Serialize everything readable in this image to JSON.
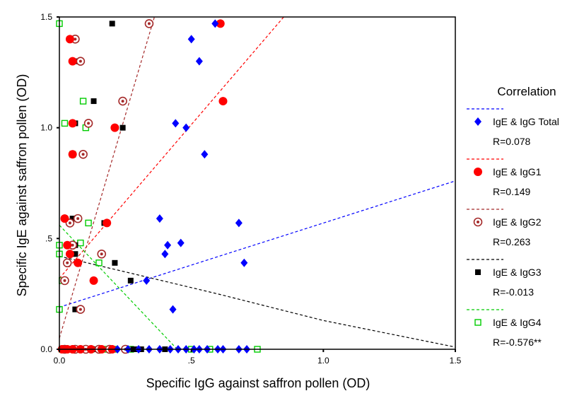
{
  "chart_data": {
    "type": "scatter",
    "xlabel": "Specific IgG against saffron pollen (OD)",
    "ylabel": "Specific IgE against saffron pollen (OD)",
    "xlim": [
      0,
      1.5
    ],
    "ylim": [
      0,
      1.5
    ],
    "x_ticks": [
      {
        "value": 0,
        "label": "0.0"
      },
      {
        "value": 0.5,
        "label": ".5"
      },
      {
        "value": 1.0,
        "label": "1.0"
      },
      {
        "value": 1.5,
        "label": "1.5"
      }
    ],
    "y_ticks": [
      {
        "value": 0,
        "label": "0.0"
      },
      {
        "value": 0.5,
        "label": ".5"
      },
      {
        "value": 1.0,
        "label": "1.0"
      },
      {
        "value": 1.5,
        "label": "1.5"
      }
    ],
    "grid": false,
    "legend_title": "Correlation",
    "legend_position": "right",
    "series": [
      {
        "name": "IgE & IgG Total",
        "r_label": "R=0.078",
        "color": "#0000ff",
        "marker": "diamond",
        "fit": [
          [
            0,
            0.19
          ],
          [
            1.5,
            0.76
          ]
        ],
        "points": [
          [
            0.33,
            0.31
          ],
          [
            0.38,
            0.59
          ],
          [
            0.4,
            0.43
          ],
          [
            0.41,
            0.47
          ],
          [
            0.43,
            0.18
          ],
          [
            0.44,
            1.02
          ],
          [
            0.46,
            0.48
          ],
          [
            0.48,
            1.0
          ],
          [
            0.5,
            1.4
          ],
          [
            0.53,
            1.3
          ],
          [
            0.55,
            0.88
          ],
          [
            0.59,
            1.47
          ],
          [
            0.68,
            0.57
          ],
          [
            0.7,
            0.39
          ],
          [
            0.22,
            0.0
          ],
          [
            0.26,
            0.0
          ],
          [
            0.3,
            0.0
          ],
          [
            0.34,
            0.0
          ],
          [
            0.38,
            0.0
          ],
          [
            0.42,
            0.0
          ],
          [
            0.45,
            0.0
          ],
          [
            0.48,
            0.0
          ],
          [
            0.51,
            0.0
          ],
          [
            0.53,
            0.0
          ],
          [
            0.56,
            0.0
          ],
          [
            0.6,
            0.0
          ],
          [
            0.62,
            0.0
          ],
          [
            0.68,
            0.0
          ],
          [
            0.71,
            0.0
          ]
        ]
      },
      {
        "name": "IgE & IgG1",
        "r_label": "R=0.149",
        "color": "#ff0000",
        "marker": "circle",
        "fit": [
          [
            0,
            0.32
          ],
          [
            0.85,
            1.5
          ]
        ],
        "points": [
          [
            0.04,
            1.4
          ],
          [
            0.05,
            1.3
          ],
          [
            0.05,
            1.02
          ],
          [
            0.05,
            0.88
          ],
          [
            0.02,
            0.59
          ],
          [
            0.03,
            0.47
          ],
          [
            0.04,
            0.43
          ],
          [
            0.07,
            0.39
          ],
          [
            0.13,
            0.31
          ],
          [
            0.18,
            0.57
          ],
          [
            0.21,
            1.0
          ],
          [
            0.61,
            1.47
          ],
          [
            0.62,
            1.12
          ],
          [
            0.01,
            0.0
          ],
          [
            0.03,
            0.0
          ],
          [
            0.05,
            0.0
          ],
          [
            0.08,
            0.0
          ],
          [
            0.12,
            0.0
          ],
          [
            0.16,
            0.0
          ],
          [
            0.2,
            0.0
          ]
        ]
      },
      {
        "name": "IgE & IgG2",
        "r_label": "R=0.263",
        "color": "#a52a2a",
        "marker": "ring",
        "fit": [
          [
            0,
            0.05
          ],
          [
            0.36,
            1.5
          ]
        ],
        "points": [
          [
            0.06,
            1.4
          ],
          [
            0.08,
            1.3
          ],
          [
            0.09,
            0.88
          ],
          [
            0.07,
            0.59
          ],
          [
            0.04,
            0.57
          ],
          [
            0.05,
            0.47
          ],
          [
            0.03,
            0.39
          ],
          [
            0.02,
            0.31
          ],
          [
            0.08,
            0.18
          ],
          [
            0.11,
            1.02
          ],
          [
            0.16,
            0.43
          ],
          [
            0.24,
            1.12
          ],
          [
            0.34,
            1.47
          ],
          [
            0.02,
            0.0
          ],
          [
            0.06,
            0.0
          ],
          [
            0.1,
            0.0
          ],
          [
            0.15,
            0.0
          ],
          [
            0.19,
            0.0
          ],
          [
            0.25,
            0.0
          ]
        ]
      },
      {
        "name": "IgE & IgG3",
        "r_label": "R=-0.013",
        "color": "#000000",
        "marker": "square",
        "fit": [
          [
            0,
            0.42
          ],
          [
            0.6,
            0.25
          ],
          [
            1.0,
            0.13
          ],
          [
            1.5,
            0.01
          ]
        ],
        "points": [
          [
            0.05,
            1.4
          ],
          [
            0.06,
            1.3
          ],
          [
            0.06,
            1.02
          ],
          [
            0.05,
            0.59
          ],
          [
            0.06,
            0.47
          ],
          [
            0.06,
            0.43
          ],
          [
            0.06,
            0.18
          ],
          [
            0.13,
            1.12
          ],
          [
            0.17,
            0.57
          ],
          [
            0.2,
            1.47
          ],
          [
            0.21,
            0.39
          ],
          [
            0.24,
            1.0
          ],
          [
            0.27,
            0.31
          ],
          [
            0.04,
            0.0
          ],
          [
            0.09,
            0.0
          ],
          [
            0.14,
            0.0
          ],
          [
            0.28,
            0.0
          ],
          [
            0.3,
            0.0
          ],
          [
            0.31,
            0.0
          ],
          [
            0.4,
            0.0
          ]
        ]
      },
      {
        "name": "IgE & IgG4",
        "r_label": "R=-0.576**",
        "color": "#00cc00",
        "marker": "open-square",
        "fit": [
          [
            0,
            0.56
          ],
          [
            0.55,
            -0.13
          ]
        ],
        "points": [
          [
            0.0,
            1.47
          ],
          [
            0.06,
            1.4
          ],
          [
            0.0,
            0.47
          ],
          [
            0.0,
            0.43
          ],
          [
            0.02,
            1.02
          ],
          [
            0.09,
            1.12
          ],
          [
            0.1,
            1.0
          ],
          [
            0.05,
            0.88
          ],
          [
            0.07,
            0.59
          ],
          [
            0.11,
            0.57
          ],
          [
            0.08,
            0.48
          ],
          [
            0.01,
            0.31
          ],
          [
            0.15,
            0.39
          ],
          [
            0.0,
            0.18
          ],
          [
            0.01,
            0.0
          ],
          [
            0.07,
            0.0
          ],
          [
            0.12,
            0.0
          ],
          [
            0.18,
            0.0
          ],
          [
            0.21,
            0.0
          ],
          [
            0.27,
            0.0
          ],
          [
            0.5,
            0.0
          ],
          [
            0.57,
            0.0
          ],
          [
            0.75,
            0.0
          ]
        ]
      }
    ]
  }
}
